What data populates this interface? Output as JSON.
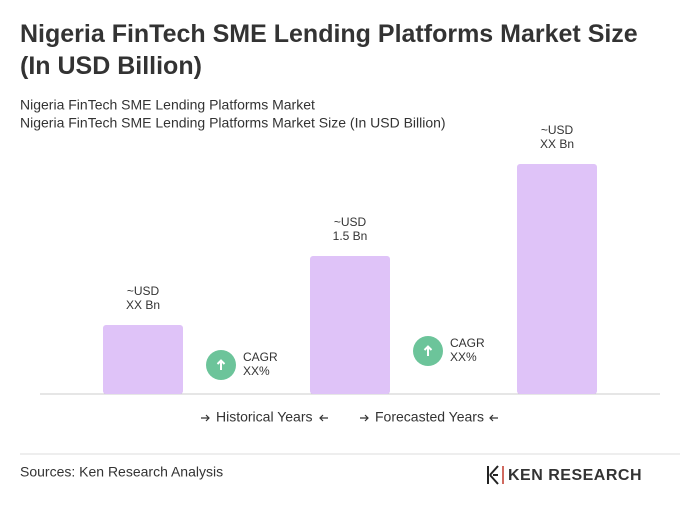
{
  "chart_data": {
    "type": "bar",
    "title": "Nigeria FinTech SME Lending Platforms Market Size (In USD Billion)",
    "subtitles": [
      "Nigeria FinTech SME Lending Platforms Market",
      "Nigeria FinTech SME Lending Platforms Market Size (In USD Billion)"
    ],
    "categories": [
      null,
      null,
      null
    ],
    "values": [
      0.75,
      1.5,
      2.5
    ],
    "value_labels": [
      "~USD\nXX Bn",
      "~USD\n1.5 Bn",
      "~USD\nXX Bn"
    ],
    "color": "#dfc3f8",
    "ylim": [
      0,
      2.5
    ],
    "annotations": [
      "CAGR\nXX%",
      "CAGR\nXX%"
    ],
    "legend": [
      "Historical Years",
      "Forecasted Years"
    ],
    "source": "Sources: Ken Research Analysis",
    "logo": "KEN RESEARCH"
  }
}
